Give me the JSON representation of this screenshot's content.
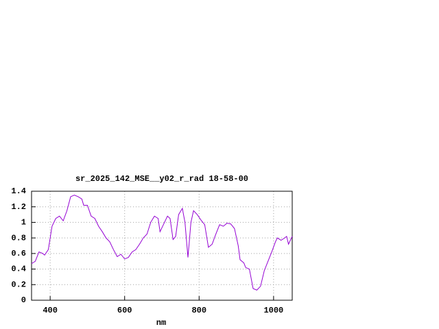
{
  "chart_data": {
    "type": "line",
    "title": "sr_2025_142_MSE__y02_r_rad 18-58-00",
    "x_label": "nm",
    "x": [
      350,
      360,
      370,
      380,
      385,
      395,
      405,
      415,
      425,
      435,
      445,
      455,
      465,
      475,
      485,
      490,
      500,
      510,
      520,
      530,
      540,
      550,
      560,
      570,
      580,
      590,
      600,
      610,
      620,
      630,
      640,
      650,
      660,
      670,
      680,
      690,
      695,
      705,
      715,
      722,
      730,
      737,
      745,
      755,
      762,
      770,
      778,
      785,
      795,
      805,
      815,
      825,
      835,
      845,
      855,
      865,
      875,
      885,
      895,
      905,
      910,
      920,
      925,
      935,
      945,
      955,
      965,
      975,
      985,
      995,
      1005,
      1010,
      1020,
      1030,
      1035,
      1040,
      1050
    ],
    "values": [
      0.47,
      0.5,
      0.62,
      0.6,
      0.58,
      0.65,
      0.95,
      1.05,
      1.08,
      1.02,
      1.15,
      1.33,
      1.35,
      1.33,
      1.3,
      1.22,
      1.22,
      1.08,
      1.05,
      0.95,
      0.88,
      0.8,
      0.75,
      0.65,
      0.56,
      0.59,
      0.53,
      0.55,
      0.62,
      0.65,
      0.72,
      0.8,
      0.85,
      1.0,
      1.08,
      1.05,
      0.88,
      0.98,
      1.08,
      1.05,
      0.78,
      0.82,
      1.1,
      1.18,
      1.0,
      0.55,
      1.0,
      1.15,
      1.1,
      1.03,
      0.97,
      0.68,
      0.72,
      0.85,
      0.97,
      0.95,
      0.99,
      0.98,
      0.92,
      0.7,
      0.52,
      0.48,
      0.42,
      0.4,
      0.15,
      0.13,
      0.18,
      0.38,
      0.5,
      0.62,
      0.75,
      0.8,
      0.77,
      0.8,
      0.82,
      0.72,
      0.82
    ],
    "color": "#9400d3",
    "xlim": [
      350,
      1050
    ],
    "xticks": [
      400,
      600,
      800,
      1000
    ],
    "ylim": [
      0,
      1.4
    ],
    "yticks": [
      0,
      0.2,
      0.4,
      0.6,
      0.8,
      1,
      1.2,
      1.4
    ],
    "grid": true
  }
}
